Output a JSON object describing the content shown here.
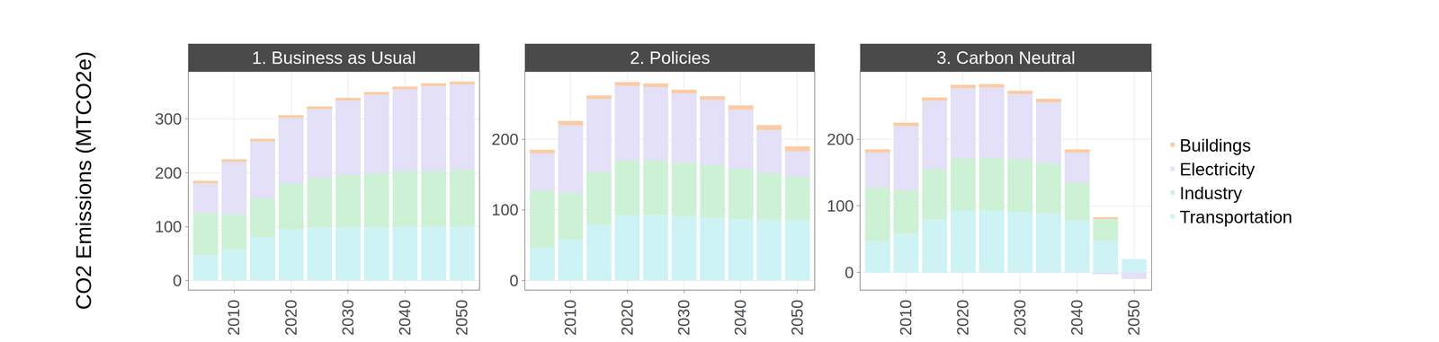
{
  "chart_data": [
    {
      "type": "bar",
      "title": "1. Business as Usual",
      "y_label": "CO2 Emissions (MTCO2e)",
      "stacked": true,
      "grid": true,
      "x": [
        2005,
        2010,
        2015,
        2020,
        2025,
        2030,
        2035,
        2040,
        2045,
        2050
      ],
      "xlim": [
        2002,
        2053
      ],
      "xticks": [
        2010,
        2020,
        2030,
        2040,
        2050
      ],
      "ylim": [
        -17,
        388
      ],
      "yticks": [
        0,
        100,
        200,
        300
      ],
      "series": [
        {
          "name": "Transportation",
          "color": "#cdf3f4",
          "values": [
            47,
            58,
            80,
            95,
            98,
            99,
            99,
            100,
            100,
            100
          ]
        },
        {
          "name": "Industry",
          "color": "#cdf1d4",
          "values": [
            78,
            65,
            73,
            85,
            92,
            97,
            100,
            103,
            103,
            105
          ]
        },
        {
          "name": "Electricity",
          "color": "#e3e0f7",
          "values": [
            55,
            97,
            105,
            122,
            128,
            138,
            146,
            152,
            158,
            159
          ]
        },
        {
          "name": "Buildings",
          "color": "#fbcba3",
          "values": [
            5,
            5,
            5,
            5,
            5,
            5,
            5,
            5,
            5,
            5
          ]
        }
      ]
    },
    {
      "type": "bar",
      "title": "2. Policies",
      "stacked": true,
      "grid": true,
      "x": [
        2005,
        2010,
        2015,
        2020,
        2025,
        2030,
        2035,
        2040,
        2045,
        2050
      ],
      "xlim": [
        2002,
        2053
      ],
      "xticks": [
        2010,
        2020,
        2030,
        2040,
        2050
      ],
      "ylim": [
        -13,
        296
      ],
      "yticks": [
        0,
        100,
        200
      ],
      "series": [
        {
          "name": "Transportation",
          "color": "#cdf3f4",
          "values": [
            47,
            58,
            79,
            92,
            93,
            91,
            89,
            87,
            86,
            86
          ]
        },
        {
          "name": "Industry",
          "color": "#cdf1d4",
          "values": [
            80,
            66,
            75,
            78,
            77,
            76,
            75,
            71,
            66,
            61
          ]
        },
        {
          "name": "Electricity",
          "color": "#e3e0f7",
          "values": [
            53,
            96,
            103,
            106,
            104,
            98,
            92,
            84,
            61,
            36
          ]
        },
        {
          "name": "Buildings",
          "color": "#fbcba3",
          "values": [
            5,
            6,
            5,
            5,
            5,
            5,
            5,
            6,
            7,
            7
          ]
        }
      ]
    },
    {
      "type": "bar",
      "title": "3. Carbon Neutral",
      "stacked": true,
      "grid": true,
      "legend": "right",
      "x": [
        2005,
        2010,
        2015,
        2020,
        2025,
        2030,
        2035,
        2040,
        2045,
        2050
      ],
      "xlim": [
        2002,
        2053
      ],
      "xticks": [
        2010,
        2020,
        2030,
        2040,
        2050
      ],
      "ylim": [
        -26,
        302
      ],
      "yticks": [
        0,
        100,
        200
      ],
      "series": [
        {
          "name": "Transportation",
          "color": "#cdf3f4",
          "values": [
            47,
            58,
            80,
            92,
            93,
            91,
            89,
            78,
            47,
            20
          ]
        },
        {
          "name": "Industry",
          "color": "#cdf1d4",
          "values": [
            80,
            66,
            75,
            79,
            79,
            79,
            75,
            57,
            33,
            0
          ]
        },
        {
          "name": "Electricity",
          "color": "#e3e0f7",
          "values": [
            53,
            96,
            103,
            106,
            106,
            98,
            92,
            45,
            -3,
            -10
          ]
        },
        {
          "name": "Buildings",
          "color": "#fbcba3",
          "values": [
            5,
            5,
            5,
            5,
            5,
            5,
            5,
            5,
            3,
            0
          ]
        }
      ]
    }
  ]
}
